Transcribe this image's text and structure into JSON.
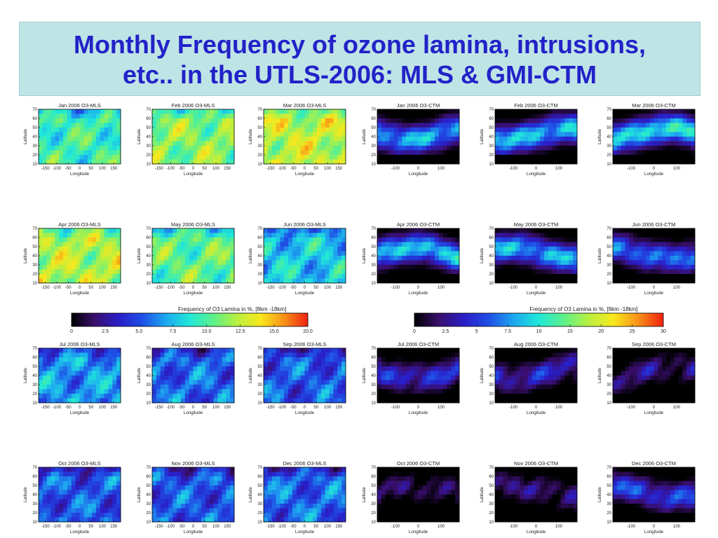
{
  "slide": {
    "title_line1": "Monthly Frequency of ozone lamina, intrusions,",
    "title_line2": "etc.. in the UTLS-2006: MLS & GMI-CTM"
  },
  "chart_data": {
    "type": "heatmap",
    "ylabel": "Latitude",
    "xlabel": "Longitude",
    "ylim": [
      10,
      70
    ],
    "yticks": [
      10,
      20,
      30,
      40,
      50,
      60,
      70
    ],
    "mls_xticks": [
      -150,
      -100,
      -50,
      0,
      50,
      100,
      150
    ],
    "ctm_xticks": [
      -100,
      0,
      100
    ],
    "mls_titles": [
      "Jan 2006 O3-MLS",
      "Feb 2006 O3-MLS",
      "Mar 2006 O3-MLS",
      "Apr 2006 O3-MLS",
      "May 2006 O3-MLS",
      "Jun 2006 O3-MLS",
      "Jul 2006 O3-MLS",
      "Aug 2006 O3-MLS",
      "Sep 2006 O3-MLS",
      "Oct 2006 O3-MLS",
      "Nov 2006 O3-MLS",
      "Dec 2006 O3-MLS"
    ],
    "ctm_titles": [
      "Jan 2006 O3-CTM",
      "Feb 2006 O3-CTM",
      "Mar 2006 O3-CTM",
      "Apr 2006 O3-CTM",
      "May 2006 O3-CTM",
      "Jun 2006 O3-CTM",
      "Jul 2006 O3-CTM",
      "Aug 2006 O3-CTM",
      "Sep 2006 O3-CTM",
      "Oct 2006 O3-CTM",
      "Nov 2006 O3-CTM",
      "Dec 2006 O3-CTM"
    ],
    "colorbars": [
      {
        "label": "Frequency of O3 Lamina in %, [8km -18km]",
        "ticks": [
          "0",
          "2.5",
          "5.0",
          "7.5",
          "10.0",
          "12.5",
          "15.0",
          "20.0"
        ],
        "range": [
          0,
          20
        ]
      },
      {
        "label": "Frequency of O3 Lamina in %, [8km -18km]",
        "ticks": [
          "0",
          "2.5",
          "5",
          "7.5",
          "10",
          "15",
          "20",
          "25",
          "30"
        ],
        "range": [
          0,
          30
        ]
      }
    ],
    "colormap": [
      "#000000",
      "#3a0f6e",
      "#2a1ec8",
      "#1f4fe6",
      "#1da8f0",
      "#20e8d8",
      "#5cf08a",
      "#b8f040",
      "#f8e81c",
      "#f89018",
      "#f02010"
    ]
  }
}
